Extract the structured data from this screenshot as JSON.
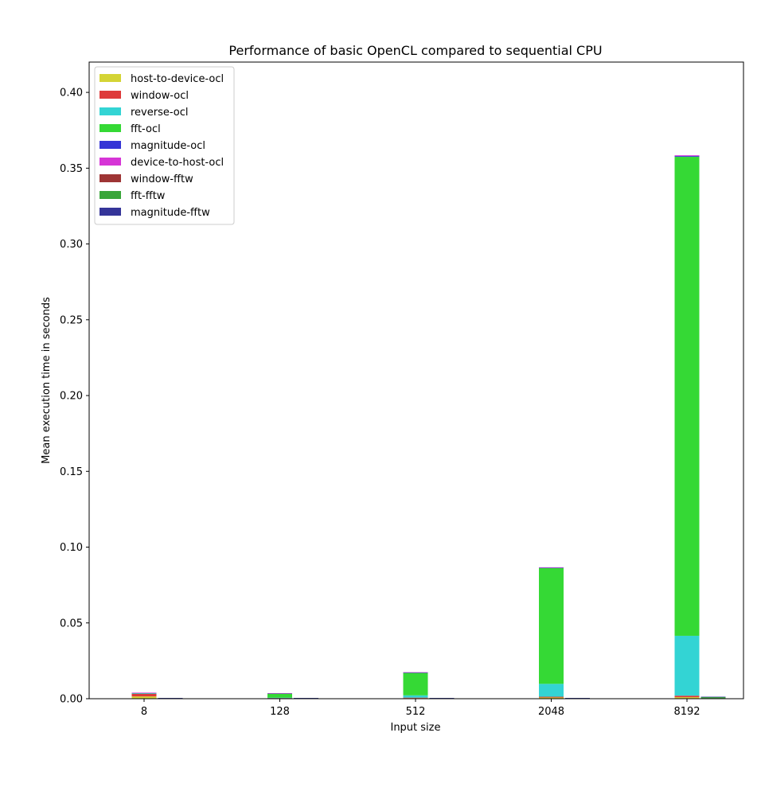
{
  "chart_data": {
    "type": "bar",
    "title": "Performance of basic OpenCL compared to sequential CPU",
    "xlabel": "Input size",
    "ylabel": "Mean execution time in seconds",
    "categories": [
      "8",
      "128",
      "512",
      "2048",
      "8192"
    ],
    "ylim": [
      0,
      0.42
    ],
    "yticks": [
      "0.00",
      "0.05",
      "0.10",
      "0.15",
      "0.20",
      "0.25",
      "0.30",
      "0.35",
      "0.40"
    ],
    "legend_position": "top-left",
    "grid": false,
    "stacks": [
      {
        "name": "OpenCL",
        "series": [
          {
            "name": "host-to-device-ocl",
            "color": "#d4d435",
            "values": [
              0.0015,
              0.0003,
              0.0004,
              0.0008,
              0.001
            ]
          },
          {
            "name": "window-ocl",
            "color": "#de3a3a",
            "values": [
              0.0018,
              0.0002,
              0.0003,
              0.0005,
              0.001
            ]
          },
          {
            "name": "reverse-ocl",
            "color": "#33d4d4",
            "values": [
              0.0002,
              0.0002,
              0.0015,
              0.0085,
              0.0395
            ]
          },
          {
            "name": "fft-ocl",
            "color": "#35d935",
            "values": [
              0.0003,
              0.0028,
              0.015,
              0.0765,
              0.316
            ]
          },
          {
            "name": "magnitude-ocl",
            "color": "#3535d6",
            "values": [
              0.0001,
              0.0001,
              0.0001,
              0.0002,
              0.0005
            ]
          },
          {
            "name": "device-to-host-ocl",
            "color": "#d635d6",
            "values": [
              0.0001,
              0.0001,
              0.0002,
              0.0002,
              0.0005
            ]
          }
        ]
      },
      {
        "name": "FFTW",
        "series": [
          {
            "name": "window-fftw",
            "color": "#9e3535",
            "values": [
              0.0001,
              0.0001,
              0.0001,
              0.0001,
              0.0003
            ]
          },
          {
            "name": "fft-fftw",
            "color": "#3aa63a",
            "values": [
              0.0003,
              0.0003,
              0.0003,
              0.0003,
              0.0008
            ]
          },
          {
            "name": "magnitude-fftw",
            "color": "#353599",
            "values": [
              0.0001,
              0.0001,
              0.0001,
              0.0001,
              0.0002
            ]
          }
        ]
      }
    ]
  }
}
